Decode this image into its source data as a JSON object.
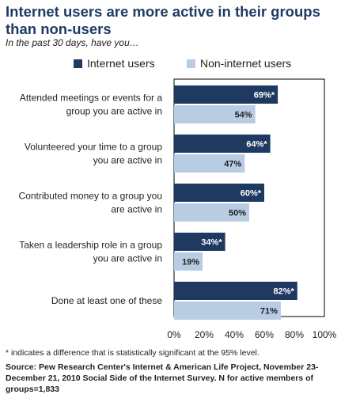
{
  "title": "Internet users are more active in their groups than non-users",
  "subtitle": "In the past 30 days, have you…",
  "footnote": "* indicates a difference that is statistically significant at the 95% level.",
  "source_label": "Source:",
  "source_text": "Pew Research Center's Internet & American Life Project, November 23-December 21, 2010 Social Side of the Internet Survey. N for active members of groups=1,833",
  "colors": {
    "internet": "#1f3a61",
    "non_internet": "#b8cce4",
    "title": "#1f3b64"
  },
  "chart_data": {
    "type": "bar",
    "orientation": "horizontal",
    "categories": [
      [
        "Attended meetings or events for a",
        "group you are active in"
      ],
      [
        "Volunteered your time to a group",
        "you are active in"
      ],
      [
        "Contributed money to a group you",
        "are active in"
      ],
      [
        "Taken a leadership role in a group",
        "you are active in"
      ],
      [
        "Done at least one of these"
      ]
    ],
    "series": [
      {
        "name": "Internet users",
        "values": [
          69,
          64,
          60,
          34,
          82
        ],
        "labels": [
          "69%*",
          "64%*",
          "60%*",
          "34%*",
          "82%*"
        ]
      },
      {
        "name": "Non-internet users",
        "values": [
          54,
          47,
          50,
          19,
          71
        ],
        "labels": [
          "54%",
          "47%",
          "50%",
          "19%",
          "71%"
        ]
      }
    ],
    "x_ticks": [
      "0%",
      "20%",
      "40%",
      "60%",
      "80%",
      "100%"
    ],
    "xlim": [
      0,
      100
    ],
    "legend_position": "top",
    "grid": false
  }
}
